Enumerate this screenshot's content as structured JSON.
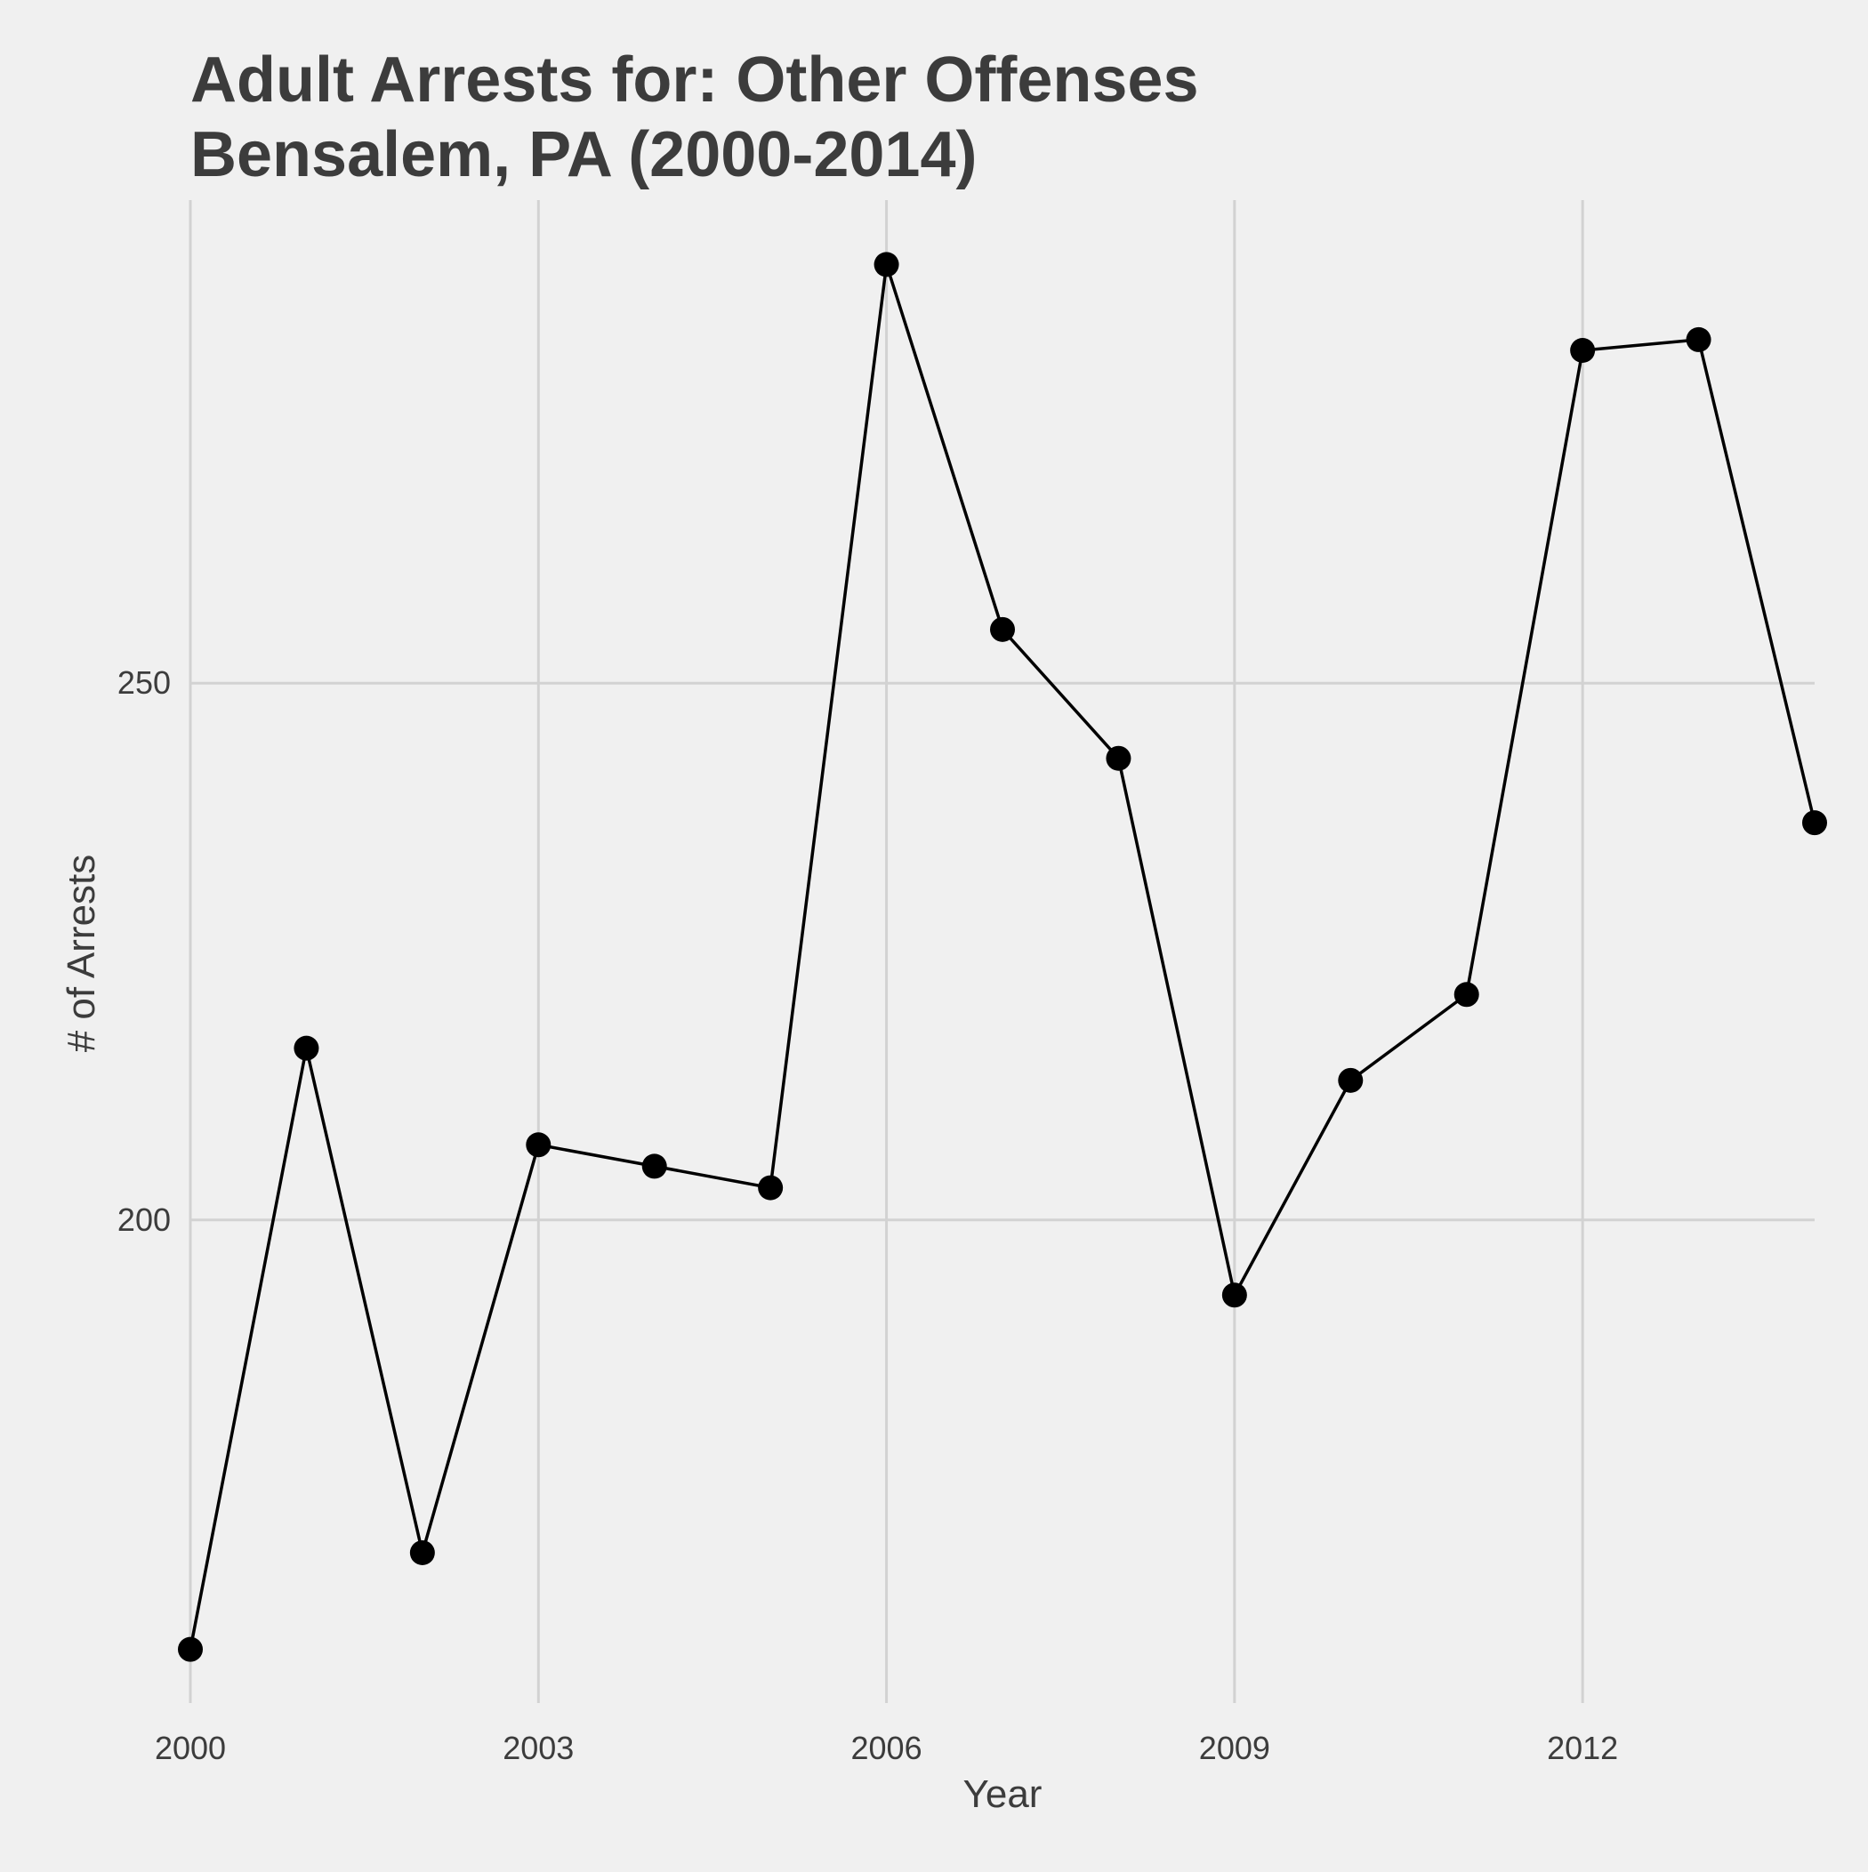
{
  "chart_data": {
    "type": "line",
    "title_lines": [
      "Adult Arrests for: Other Offenses",
      "Bensalem, PA (2000-2014)"
    ],
    "xlabel": "Year",
    "ylabel": "# of Arrests",
    "x": [
      2000,
      2001,
      2002,
      2003,
      2004,
      2005,
      2006,
      2007,
      2008,
      2009,
      2010,
      2011,
      2012,
      2013,
      2014
    ],
    "series": [
      {
        "values": [
          160,
          216,
          169,
          207,
          205,
          203,
          289,
          255,
          243,
          193,
          213,
          221,
          281,
          282,
          237
        ]
      }
    ],
    "xlim": [
      2000,
      2014
    ],
    "ylim": [
      155,
      295
    ],
    "x_ticks": [
      2000,
      2003,
      2006,
      2009,
      2012
    ],
    "x_tick_labels": [
      "2000",
      "2003",
      "2006",
      "2009",
      "2012"
    ],
    "y_ticks": [
      200,
      250
    ],
    "y_tick_labels": [
      "200",
      "250"
    ],
    "grid": true,
    "legend": "none",
    "colors": {
      "background": "#f0f0f0",
      "grid": "#d2d2d2",
      "line": "#000000",
      "point": "#000000",
      "text": "#3c3c3c"
    }
  }
}
